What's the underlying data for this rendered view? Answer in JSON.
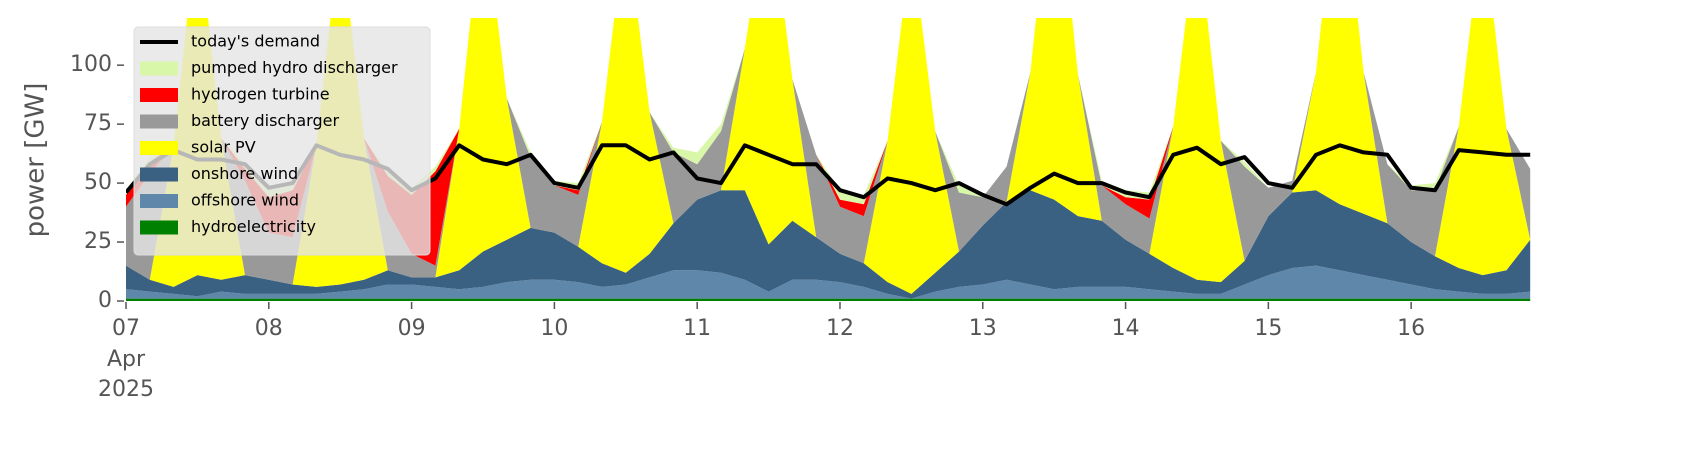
{
  "chart_data": {
    "type": "area",
    "ylabel": "power [GW]",
    "ylim": [
      0,
      120
    ],
    "yticks": [
      0,
      25,
      50,
      75,
      100
    ],
    "xlim": [
      "2025-04-07 00:00",
      "2025-04-16 23:00"
    ],
    "xticks": [
      {
        "value": "2025-04-07 00:00",
        "label": "07"
      },
      {
        "value": "2025-04-08 00:00",
        "label": "08"
      },
      {
        "value": "2025-04-09 00:00",
        "label": "09"
      },
      {
        "value": "2025-04-10 00:00",
        "label": "10"
      },
      {
        "value": "2025-04-11 00:00",
        "label": "11"
      },
      {
        "value": "2025-04-12 00:00",
        "label": "12"
      },
      {
        "value": "2025-04-13 00:00",
        "label": "13"
      },
      {
        "value": "2025-04-14 00:00",
        "label": "14"
      },
      {
        "value": "2025-04-15 00:00",
        "label": "15"
      },
      {
        "value": "2025-04-16 00:00",
        "label": "16"
      }
    ],
    "xtick_sublabels": [
      "Apr",
      "2025"
    ],
    "legend": "upper left",
    "x": [
      "2025-04-07 00:00",
      "2025-04-07 04:00",
      "2025-04-07 08:00",
      "2025-04-07 12:00",
      "2025-04-07 16:00",
      "2025-04-07 20:00",
      "2025-04-08 00:00",
      "2025-04-08 04:00",
      "2025-04-08 08:00",
      "2025-04-08 12:00",
      "2025-04-08 16:00",
      "2025-04-08 20:00",
      "2025-04-09 00:00",
      "2025-04-09 04:00",
      "2025-04-09 08:00",
      "2025-04-09 12:00",
      "2025-04-09 16:00",
      "2025-04-09 20:00",
      "2025-04-10 00:00",
      "2025-04-10 04:00",
      "2025-04-10 08:00",
      "2025-04-10 12:00",
      "2025-04-10 16:00",
      "2025-04-10 20:00",
      "2025-04-11 00:00",
      "2025-04-11 04:00",
      "2025-04-11 08:00",
      "2025-04-11 12:00",
      "2025-04-11 16:00",
      "2025-04-11 20:00",
      "2025-04-12 00:00",
      "2025-04-12 04:00",
      "2025-04-12 08:00",
      "2025-04-12 12:00",
      "2025-04-12 16:00",
      "2025-04-12 20:00",
      "2025-04-13 00:00",
      "2025-04-13 04:00",
      "2025-04-13 08:00",
      "2025-04-13 12:00",
      "2025-04-13 16:00",
      "2025-04-13 20:00",
      "2025-04-14 00:00",
      "2025-04-14 04:00",
      "2025-04-14 08:00",
      "2025-04-14 12:00",
      "2025-04-14 16:00",
      "2025-04-14 20:00",
      "2025-04-15 00:00",
      "2025-04-15 04:00",
      "2025-04-15 08:00",
      "2025-04-15 12:00",
      "2025-04-15 16:00",
      "2025-04-15 20:00",
      "2025-04-16 00:00",
      "2025-04-16 04:00",
      "2025-04-16 08:00",
      "2025-04-16 12:00",
      "2025-04-16 16:00",
      "2025-04-16 20:00"
    ],
    "series": [
      {
        "name": "today's demand",
        "style": "line",
        "color": "#000000",
        "values": [
          46,
          58,
          64,
          60,
          60,
          58,
          48,
          50,
          66,
          62,
          60,
          56,
          47,
          52,
          66,
          60,
          58,
          62,
          50,
          48,
          66,
          66,
          60,
          63,
          52,
          50,
          66,
          62,
          58,
          58,
          47,
          44,
          52,
          50,
          47,
          50,
          45,
          41,
          48,
          54,
          50,
          50,
          46,
          44,
          62,
          65,
          58,
          61,
          50,
          48,
          62,
          66,
          63,
          62,
          48,
          47,
          64,
          63,
          62,
          62
        ]
      },
      {
        "name": "pumped hydro discharger",
        "style": "area",
        "color": "#d9f7a8",
        "values": [
          2,
          2,
          0,
          0,
          0,
          2,
          3,
          2,
          0,
          0,
          0,
          2,
          3,
          2,
          0,
          0,
          0,
          2,
          2,
          3,
          0,
          0,
          0,
          2,
          5,
          3,
          0,
          0,
          0,
          0,
          4,
          4,
          0,
          0,
          0,
          3,
          0,
          0,
          0,
          0,
          0,
          2,
          3,
          3,
          0,
          0,
          0,
          2,
          0,
          0,
          0,
          0,
          0,
          0,
          2,
          3,
          0,
          0,
          0,
          0
        ]
      },
      {
        "name": "hydrogen turbine",
        "style": "area",
        "color": "#ff0000",
        "values": [
          5,
          5,
          0,
          0,
          0,
          5,
          15,
          20,
          0,
          0,
          0,
          15,
          25,
          40,
          0,
          0,
          0,
          0,
          0,
          2,
          0,
          0,
          0,
          0,
          0,
          0,
          0,
          0,
          0,
          0,
          3,
          5,
          0,
          0,
          0,
          0,
          0,
          0,
          0,
          0,
          0,
          0,
          3,
          8,
          0,
          0,
          0,
          0,
          0,
          0,
          0,
          0,
          0,
          0,
          0,
          0,
          0,
          0,
          0,
          0
        ]
      },
      {
        "name": "battery discharger",
        "style": "area",
        "color": "#999999",
        "values": [
          25,
          45,
          0,
          0,
          0,
          40,
          20,
          20,
          0,
          0,
          0,
          25,
          10,
          5,
          0,
          0,
          0,
          30,
          20,
          22,
          0,
          0,
          0,
          30,
          15,
          25,
          0,
          0,
          0,
          35,
          20,
          20,
          0,
          0,
          0,
          25,
          12,
          15,
          0,
          0,
          0,
          15,
          15,
          15,
          0,
          0,
          0,
          40,
          12,
          5,
          0,
          0,
          0,
          25,
          22,
          28,
          0,
          0,
          0,
          30
        ]
      },
      {
        "name": "solar PV",
        "style": "area",
        "color": "#ffff00",
        "values": [
          0,
          0,
          60,
          150,
          60,
          0,
          0,
          0,
          60,
          150,
          60,
          0,
          0,
          0,
          60,
          150,
          60,
          0,
          0,
          0,
          60,
          150,
          60,
          0,
          0,
          0,
          60,
          150,
          60,
          0,
          0,
          0,
          60,
          150,
          60,
          0,
          0,
          0,
          50,
          150,
          60,
          0,
          0,
          0,
          60,
          150,
          60,
          0,
          0,
          0,
          50,
          150,
          60,
          0,
          0,
          0,
          60,
          150,
          60,
          0
        ]
      },
      {
        "name": "onshore wind",
        "style": "area",
        "color": "#3b6182",
        "values": [
          10,
          5,
          3,
          9,
          5,
          8,
          6,
          4,
          3,
          3,
          4,
          6,
          3,
          4,
          8,
          15,
          18,
          22,
          20,
          15,
          10,
          5,
          10,
          20,
          30,
          35,
          38,
          20,
          25,
          18,
          12,
          10,
          5,
          2,
          8,
          15,
          25,
          33,
          40,
          38,
          30,
          28,
          20,
          15,
          10,
          6,
          5,
          10,
          25,
          32,
          32,
          28,
          26,
          24,
          18,
          14,
          10,
          8,
          10,
          22
        ]
      },
      {
        "name": "offshore wind",
        "style": "area",
        "color": "#5f87aa",
        "values": [
          4,
          3,
          2,
          1,
          3,
          2,
          2,
          2,
          2,
          3,
          4,
          6,
          6,
          5,
          4,
          5,
          7,
          8,
          8,
          7,
          5,
          6,
          9,
          12,
          12,
          11,
          8,
          3,
          8,
          8,
          7,
          5,
          2,
          0,
          3,
          5,
          6,
          8,
          6,
          4,
          5,
          5,
          5,
          4,
          3,
          2,
          2,
          6,
          10,
          13,
          14,
          12,
          10,
          8,
          6,
          4,
          3,
          2,
          2,
          3
        ]
      },
      {
        "name": "hydroelectricity",
        "style": "area",
        "color": "#008000",
        "values": [
          1,
          1,
          1,
          1,
          1,
          1,
          1,
          1,
          1,
          1,
          1,
          1,
          1,
          1,
          1,
          1,
          1,
          1,
          1,
          1,
          1,
          1,
          1,
          1,
          1,
          1,
          1,
          1,
          1,
          1,
          1,
          1,
          1,
          1,
          1,
          1,
          1,
          1,
          1,
          1,
          1,
          1,
          1,
          1,
          1,
          1,
          1,
          1,
          1,
          1,
          1,
          1,
          1,
          1,
          1,
          1,
          1,
          1,
          1,
          1
        ]
      }
    ]
  }
}
